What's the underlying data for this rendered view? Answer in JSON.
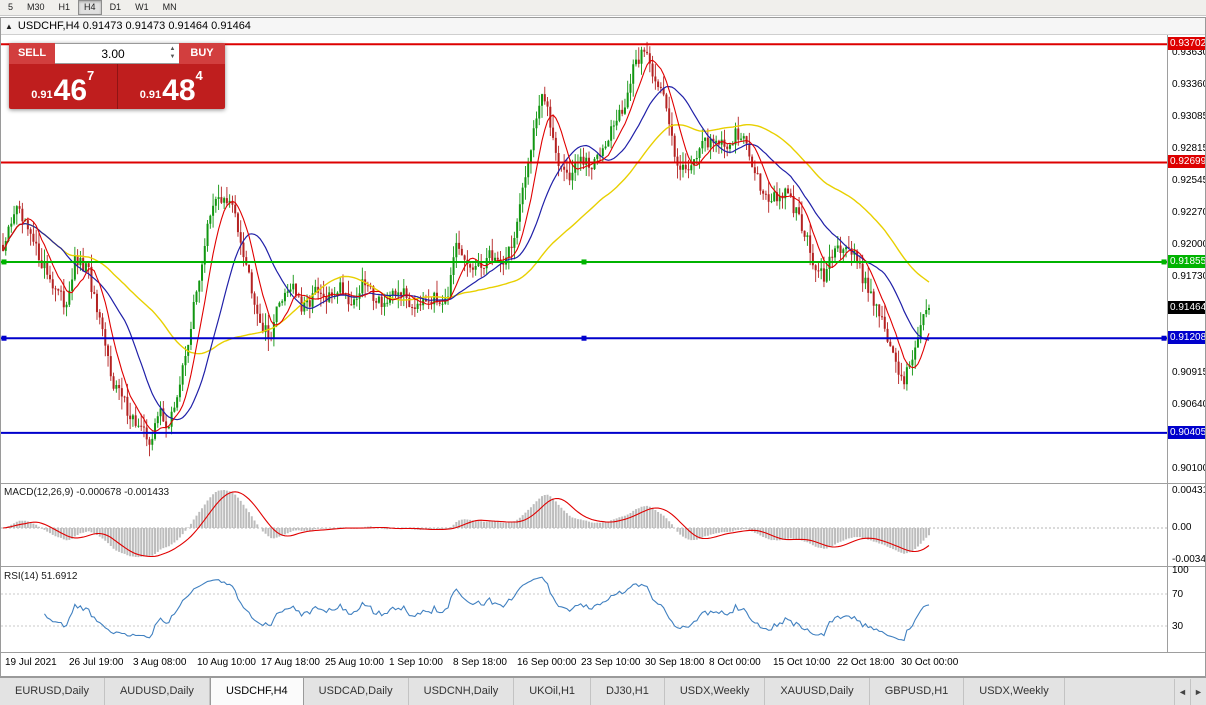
{
  "toolbar": {
    "timeframes": [
      "5",
      "M30",
      "H1",
      "H4",
      "D1",
      "W1",
      "MN"
    ],
    "active": "H4"
  },
  "chart_window": {
    "title": "USDCHF,H4 0.91473 0.91473 0.91464 0.91464"
  },
  "trade_panel": {
    "sell_label": "SELL",
    "buy_label": "BUY",
    "lot": "3.00",
    "sell_price": {
      "prefix": "0.91",
      "big": "46",
      "sup": "7"
    },
    "buy_price": {
      "prefix": "0.91",
      "big": "48",
      "sup": "4"
    }
  },
  "price_axis": {
    "ticks": [
      {
        "label": "0.93630",
        "price": 0.9363
      },
      {
        "label": "0.93360",
        "price": 0.9336
      },
      {
        "label": "0.93085",
        "price": 0.93085
      },
      {
        "label": "0.92815",
        "price": 0.92815
      },
      {
        "label": "0.92545",
        "price": 0.92545
      },
      {
        "label": "0.92270",
        "price": 0.9227
      },
      {
        "label": "0.92000",
        "price": 0.92
      },
      {
        "label": "0.91730",
        "price": 0.9173
      },
      {
        "label": "0.90915",
        "price": 0.90915
      },
      {
        "label": "0.90640",
        "price": 0.9064
      },
      {
        "label": "0.90100",
        "price": 0.901
      }
    ],
    "current_price": {
      "label": "0.91464",
      "price": 0.91464,
      "color": "#000000"
    }
  },
  "hlines": [
    {
      "label": "0.93702",
      "price": 0.93702,
      "color": "#dd0000",
      "width": 2,
      "selected": false
    },
    {
      "label": "0.92699",
      "price": 0.92699,
      "color": "#dd0000",
      "width": 2,
      "selected": false
    },
    {
      "label": "0.91855",
      "price": 0.91855,
      "color": "#00b300",
      "width": 2,
      "selected": true
    },
    {
      "label": "0.91208",
      "price": 0.91208,
      "color": "#0000cc",
      "width": 2,
      "selected": true
    },
    {
      "label": "0.90405",
      "price": 0.90405,
      "color": "#0000cc",
      "width": 2,
      "selected": false
    }
  ],
  "macd_panel": {
    "label": "MACD(12,26,9) -0.000678 -0.001433",
    "axis_labels": [
      "0.00431",
      "0.00",
      "-0.00340"
    ]
  },
  "rsi_panel": {
    "label": "RSI(14) 51.6912",
    "axis_labels": [
      "100",
      "70",
      "30"
    ],
    "levels": [
      70,
      30
    ]
  },
  "time_axis": [
    "19 Jul 2021",
    "26 Jul 19:00",
    "3 Aug 08:00",
    "10 Aug 10:00",
    "17 Aug 18:00",
    "25 Aug 10:00",
    "1 Sep 10:00",
    "8 Sep 18:00",
    "16 Sep 00:00",
    "23 Sep 10:00",
    "30 Sep 18:00",
    "8 Oct 00:00",
    "15 Oct 10:00",
    "22 Oct 18:00",
    "30 Oct 00:00"
  ],
  "tabs": {
    "items": [
      "EURUSD,Daily",
      "AUDUSD,Daily",
      "USDCHF,H4",
      "USDCAD,Daily",
      "USDCNH,Daily",
      "UKOil,H1",
      "DJ30,H1",
      "USDX,Weekly",
      "XAUUSD,Daily",
      "GBPUSD,H1",
      "USDX,Weekly"
    ],
    "active_index": 2
  },
  "chart_data": {
    "type": "candlestick",
    "symbol": "USDCHF",
    "timeframe": "H4",
    "price_min": 0.8998,
    "price_max": 0.9378,
    "bars": 336,
    "ma_periods": {
      "fast": 8,
      "mid": 21,
      "slow": 55
    },
    "colors": {
      "up": "#119611",
      "down": "#b42222",
      "ma_fast": "#e00000",
      "ma_mid": "#2020a8",
      "ma_slow": "#e8d000",
      "macd_hist": "#bdbdbd",
      "macd_signal": "#e00000",
      "rsi": "#4080c0"
    },
    "anchors": [
      [
        0.0,
        0.9195
      ],
      [
        0.013,
        0.9232
      ],
      [
        0.032,
        0.9202
      ],
      [
        0.052,
        0.917
      ],
      [
        0.067,
        0.9148
      ],
      [
        0.078,
        0.9186
      ],
      [
        0.092,
        0.9178
      ],
      [
        0.102,
        0.914
      ],
      [
        0.119,
        0.9085
      ],
      [
        0.135,
        0.906
      ],
      [
        0.149,
        0.9042
      ],
      [
        0.16,
        0.9034
      ],
      [
        0.17,
        0.906
      ],
      [
        0.179,
        0.9044
      ],
      [
        0.192,
        0.9085
      ],
      [
        0.207,
        0.915
      ],
      [
        0.221,
        0.9215
      ],
      [
        0.232,
        0.9242
      ],
      [
        0.25,
        0.923
      ],
      [
        0.264,
        0.918
      ],
      [
        0.278,
        0.9135
      ],
      [
        0.287,
        0.912
      ],
      [
        0.3,
        0.9155
      ],
      [
        0.313,
        0.9168
      ],
      [
        0.323,
        0.9142
      ],
      [
        0.336,
        0.916
      ],
      [
        0.35,
        0.9152
      ],
      [
        0.364,
        0.9166
      ],
      [
        0.377,
        0.915
      ],
      [
        0.39,
        0.9168
      ],
      [
        0.403,
        0.9155
      ],
      [
        0.416,
        0.915
      ],
      [
        0.429,
        0.9162
      ],
      [
        0.442,
        0.9148
      ],
      [
        0.455,
        0.9158
      ],
      [
        0.468,
        0.9152
      ],
      [
        0.481,
        0.916
      ],
      [
        0.49,
        0.9198
      ],
      [
        0.498,
        0.9185
      ],
      [
        0.512,
        0.9178
      ],
      [
        0.526,
        0.9192
      ],
      [
        0.539,
        0.9185
      ],
      [
        0.552,
        0.9205
      ],
      [
        0.563,
        0.925
      ],
      [
        0.573,
        0.93
      ],
      [
        0.582,
        0.933
      ],
      [
        0.591,
        0.9302
      ],
      [
        0.601,
        0.9268
      ],
      [
        0.612,
        0.9258
      ],
      [
        0.623,
        0.9272
      ],
      [
        0.636,
        0.9264
      ],
      [
        0.647,
        0.9285
      ],
      [
        0.66,
        0.9302
      ],
      [
        0.67,
        0.9315
      ],
      [
        0.681,
        0.9348
      ],
      [
        0.692,
        0.9368
      ],
      [
        0.703,
        0.9345
      ],
      [
        0.711,
        0.9332
      ],
      [
        0.72,
        0.93
      ],
      [
        0.728,
        0.9272
      ],
      [
        0.737,
        0.9262
      ],
      [
        0.748,
        0.9278
      ],
      [
        0.759,
        0.9285
      ],
      [
        0.769,
        0.9292
      ],
      [
        0.78,
        0.928
      ],
      [
        0.791,
        0.9295
      ],
      [
        0.802,
        0.9285
      ],
      [
        0.813,
        0.9262
      ],
      [
        0.823,
        0.9242
      ],
      [
        0.834,
        0.9238
      ],
      [
        0.845,
        0.9244
      ],
      [
        0.856,
        0.9228
      ],
      [
        0.866,
        0.9212
      ],
      [
        0.877,
        0.9178
      ],
      [
        0.886,
        0.9172
      ],
      [
        0.897,
        0.9192
      ],
      [
        0.907,
        0.9202
      ],
      [
        0.918,
        0.9195
      ],
      [
        0.929,
        0.9172
      ],
      [
        0.94,
        0.9155
      ],
      [
        0.948,
        0.914
      ],
      [
        0.957,
        0.9115
      ],
      [
        0.966,
        0.9092
      ],
      [
        0.974,
        0.9086
      ],
      [
        0.983,
        0.911
      ],
      [
        0.991,
        0.913
      ],
      [
        1.0,
        0.9146
      ]
    ]
  }
}
